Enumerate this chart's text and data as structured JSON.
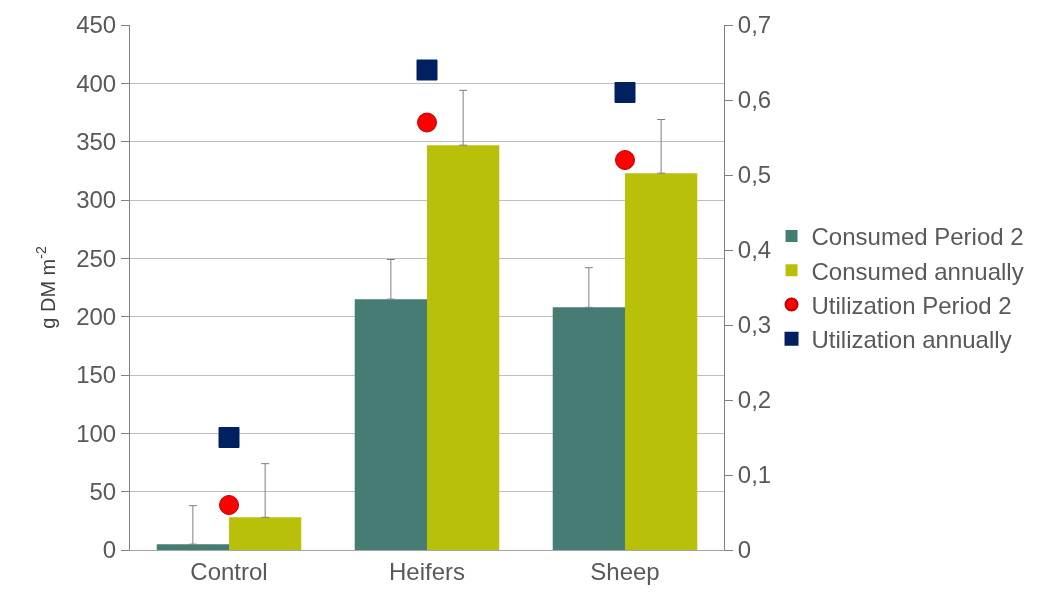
{
  "chart_data": {
    "type": "bar",
    "ylabel": "g DM m$^{-2}$",
    "categories": [
      "Control",
      "Heifers",
      "Sheep"
    ],
    "series": [
      {
        "name": "Consumed Period 2",
        "color": "#467c74",
        "values": [
          5,
          215,
          208
        ],
        "errors": [
          [
            5,
            38
          ],
          [
            215,
            249
          ],
          [
            208,
            242
          ]
        ]
      },
      {
        "name": "Consumed annually",
        "color": "#b8c00a",
        "values": [
          28,
          347,
          323
        ],
        "errors": [
          [
            28,
            74
          ],
          [
            347,
            394
          ],
          [
            323,
            369
          ]
        ]
      },
      {
        "name": "Utilization Period 2",
        "type": "scatter",
        "axis": "y2",
        "marker": "circle",
        "color": "#ff0000",
        "x": [
          "Control",
          "Heifers",
          "Sheep"
        ],
        "values": [
          0.06,
          0.57,
          0.52
        ]
      },
      {
        "name": "Utilization annually",
        "type": "scatter",
        "axis": "y2",
        "marker": "square",
        "color": "#002060",
        "x": [
          "Control",
          "Heifers",
          "Sheep"
        ],
        "values": [
          0.15,
          0.64,
          0.61
        ]
      }
    ],
    "ylim": [
      0,
      450
    ],
    "yticks": [
      0,
      50,
      100,
      150,
      200,
      250,
      300,
      350,
      400,
      450
    ],
    "y2lim": [
      0,
      0.7
    ],
    "y2ticks": [
      {
        "value": 0,
        "label": "0"
      },
      {
        "value": 0.1,
        "label": "0,1"
      },
      {
        "value": 0.2,
        "label": "0,2"
      },
      {
        "value": 0.3,
        "label": "0,3"
      },
      {
        "value": 0.4,
        "label": "0,4"
      },
      {
        "value": 0.5,
        "label": "0,5"
      },
      {
        "value": 0.6,
        "label": "0,6"
      },
      {
        "value": 0.7,
        "label": "0,7"
      }
    ],
    "grid": "y",
    "legend": "right"
  }
}
